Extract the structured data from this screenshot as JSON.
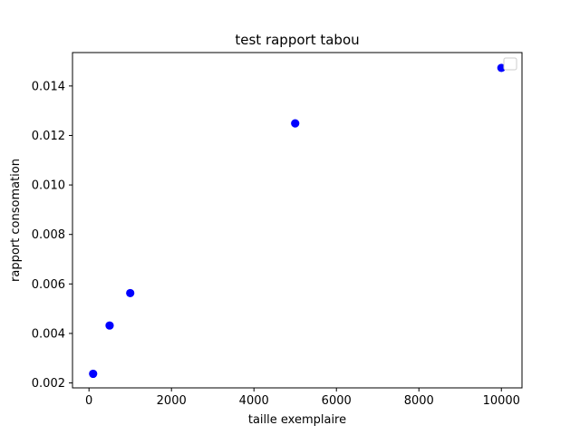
{
  "chart_data": {
    "type": "scatter",
    "title": "test rapport tabou",
    "xlabel": "taille exemplaire",
    "ylabel": "rapport consomation",
    "x": [
      100,
      500,
      1000,
      5000,
      10000
    ],
    "y": [
      0.00237,
      0.00432,
      0.00563,
      0.01249,
      0.01473
    ],
    "xlim": [
      -400,
      10500
    ],
    "ylim": [
      0.0018,
      0.01535
    ],
    "x_ticks": [
      0,
      2000,
      4000,
      6000,
      8000,
      10000
    ],
    "x_tick_labels": [
      "0",
      "2000",
      "4000",
      "6000",
      "8000",
      "10000"
    ],
    "y_ticks": [
      0.002,
      0.004,
      0.006,
      0.008,
      0.01,
      0.012,
      0.014
    ],
    "y_tick_labels": [
      "0.002",
      "0.004",
      "0.006",
      "0.008",
      "0.010",
      "0.012",
      "0.014"
    ],
    "grid": false,
    "legend": "top-right",
    "marker_color": "#0000ff"
  }
}
